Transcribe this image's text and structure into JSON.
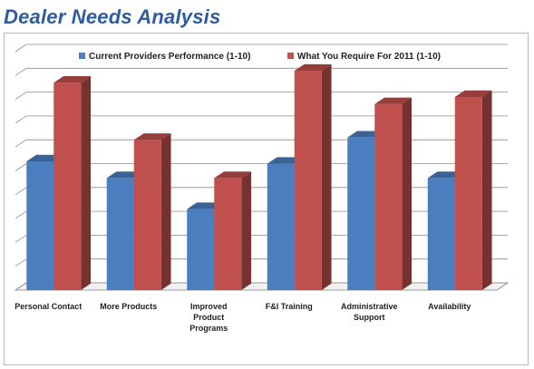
{
  "page": {
    "title": "Dealer Needs Analysis"
  },
  "chart_data": {
    "type": "bar",
    "title": "",
    "xlabel": "",
    "ylabel": "",
    "ylim": [
      0,
      10
    ],
    "grid": true,
    "legend_position": "top",
    "categories": [
      "Personal Contact",
      "More Products",
      "Improved Product Programs",
      "F&I Training",
      "Administrative Support",
      "Availability"
    ],
    "category_lines": [
      [
        "Personal Contact"
      ],
      [
        "More Products"
      ],
      [
        "Improved",
        "Product",
        "Programs"
      ],
      [
        "F&I Training"
      ],
      [
        "Administrative",
        "Support"
      ],
      [
        "Availability"
      ]
    ],
    "series": [
      {
        "name": "Current Providers Performance (1-10)",
        "color": "#4a7ebf",
        "values": [
          5.4,
          4.7,
          3.4,
          5.3,
          6.4,
          4.7
        ]
      },
      {
        "name": "What You Require For 2011 (1-10)",
        "color": "#c0504d",
        "values": [
          8.7,
          6.3,
          4.7,
          9.2,
          7.8,
          8.1
        ]
      }
    ]
  }
}
